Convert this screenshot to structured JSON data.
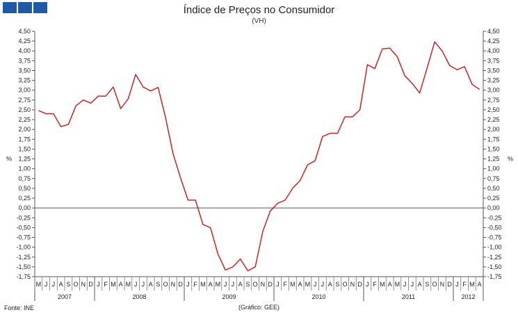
{
  "header": {
    "title": "Índice de Preços no Consumidor",
    "subtitle": "(VH)"
  },
  "footer": {
    "source": "Fonte: INE",
    "credit": "(Gráfico: GEE)"
  },
  "chart_data": {
    "type": "line",
    "title": "Índice de Preços no Consumidor",
    "subtitle": "(VH)",
    "ylabel_left": "%",
    "ylabel_right": "%",
    "ylim": [
      -1.75,
      4.5
    ],
    "y_ticks": [
      "4,50",
      "4,25",
      "4,00",
      "3,75",
      "3,50",
      "3,25",
      "3,00",
      "2,75",
      "2,50",
      "2,25",
      "2,00",
      "1,75",
      "1,50",
      "1,25",
      "1,00",
      "0,75",
      "0,50",
      "0,25",
      "0,00",
      "-0,25",
      "-0,50",
      "-0,75",
      "-1,00",
      "-1,25",
      "-1,50",
      "-1,75"
    ],
    "y_tick_values": [
      4.5,
      4.25,
      4.0,
      3.75,
      3.5,
      3.25,
      3.0,
      2.75,
      2.5,
      2.25,
      2.0,
      1.75,
      1.5,
      1.25,
      1.0,
      0.75,
      0.5,
      0.25,
      0.0,
      -0.25,
      -0.5,
      -0.75,
      -1.0,
      -1.25,
      -1.5,
      -1.75
    ],
    "month_labels": [
      "M",
      "J",
      "J",
      "A",
      "S",
      "O",
      "N",
      "D",
      "J",
      "F",
      "M",
      "A",
      "M",
      "J",
      "J",
      "A",
      "S",
      "O",
      "N",
      "D",
      "J",
      "F",
      "M",
      "A",
      "M",
      "J",
      "J",
      "A",
      "S",
      "O",
      "N",
      "D",
      "J",
      "F",
      "M",
      "A",
      "M",
      "J",
      "J",
      "A",
      "S",
      "O",
      "N",
      "D",
      "J",
      "F",
      "M",
      "A",
      "M",
      "J",
      "J",
      "A",
      "S",
      "O",
      "N",
      "D",
      "J",
      "F",
      "M",
      "A"
    ],
    "years": [
      {
        "label": "2007",
        "months": 8
      },
      {
        "label": "2008",
        "months": 12
      },
      {
        "label": "2009",
        "months": 12
      },
      {
        "label": "2010",
        "months": 12
      },
      {
        "label": "2011",
        "months": 12
      },
      {
        "label": "2012",
        "months": 4
      }
    ],
    "series": [
      {
        "color": "#cc2222",
        "values": [
          2.48,
          2.4,
          2.4,
          2.07,
          2.13,
          2.6,
          2.75,
          2.67,
          2.85,
          2.85,
          3.08,
          2.53,
          2.78,
          3.4,
          3.08,
          2.98,
          3.07,
          2.3,
          1.38,
          0.77,
          0.2,
          0.2,
          -0.42,
          -0.5,
          -1.17,
          -1.58,
          -1.5,
          -1.3,
          -1.6,
          -1.5,
          -0.6,
          -0.08,
          0.12,
          0.2,
          0.5,
          0.7,
          1.1,
          1.2,
          1.82,
          1.9,
          1.9,
          2.32,
          2.32,
          2.5,
          3.65,
          3.55,
          4.05,
          4.07,
          3.85,
          3.37,
          3.17,
          2.93,
          3.57,
          4.23,
          4.0,
          3.63,
          3.52,
          3.6,
          3.15,
          3.02
        ]
      }
    ]
  }
}
